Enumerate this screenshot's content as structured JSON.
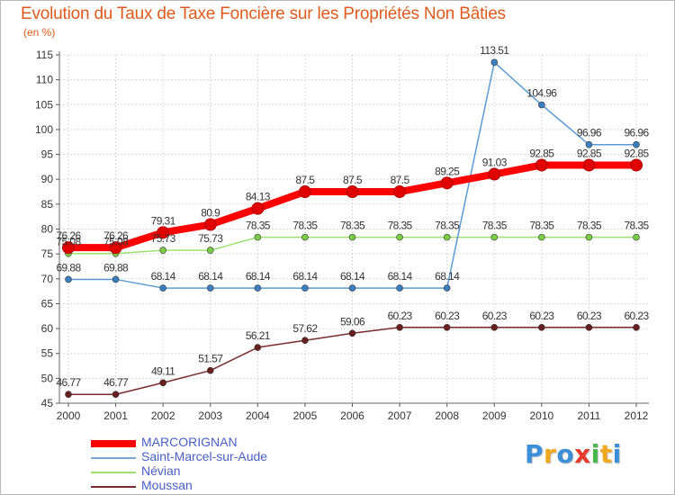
{
  "title": "Evolution du Taux de Taxe Foncière sur les Propriétés Non Bâties",
  "subtitle": "(en %)",
  "chart_data": {
    "type": "line",
    "title": "Evolution du Taux de Taxe Foncière sur les Propriétés Non Bâties",
    "ylabel": "(en %)",
    "xlabel": "",
    "categories": [
      "2000",
      "2001",
      "2002",
      "2003",
      "2004",
      "2005",
      "2006",
      "2007",
      "2008",
      "2009",
      "2010",
      "2011",
      "2012"
    ],
    "ylim": [
      45,
      115
    ],
    "yticks": [
      45,
      50,
      55,
      60,
      65,
      70,
      75,
      80,
      85,
      90,
      95,
      100,
      105,
      110,
      115
    ],
    "grid": true,
    "legend": "bottom-left",
    "series": [
      {
        "name": "MARCORIGNAN",
        "color": "#ff0000",
        "marker_color": "#e00000",
        "values": [
          76.26,
          76.26,
          79.31,
          80.9,
          84.13,
          87.5,
          87.5,
          87.5,
          89.25,
          91.03,
          92.85,
          92.85,
          92.85
        ],
        "labels": [
          "76.26",
          "76.26",
          "79.31",
          "80.9",
          "84.13",
          "87.5",
          "87.5",
          "87.5",
          "89.25",
          "91.03",
          "92.85",
          "92.85",
          "92.85"
        ]
      },
      {
        "name": "Saint-Marcel-sur-Aude",
        "color": "#5b9bd5",
        "marker_color": "#3a7fc0",
        "values": [
          69.88,
          69.88,
          68.14,
          68.14,
          68.14,
          68.14,
          68.14,
          68.14,
          68.14,
          113.51,
          104.96,
          96.96,
          96.96
        ],
        "labels": [
          "69.88",
          "69.88",
          "68.14",
          "68.14",
          "68.14",
          "68.14",
          "68.14",
          "68.14",
          "68.14",
          "113.51",
          "104.96",
          "96.96",
          "96.96"
        ]
      },
      {
        "name": "Névian",
        "color": "#9be36e",
        "marker_color": "#7bcc45",
        "values": [
          75.08,
          75.08,
          75.73,
          75.73,
          78.35,
          78.35,
          78.35,
          78.35,
          78.35,
          78.35,
          78.35,
          78.35,
          78.35
        ],
        "labels": [
          "75.08",
          "75.08",
          "75.73",
          "75.73",
          "78.35",
          "78.35",
          "78.35",
          "78.35",
          "78.35",
          "78.35",
          "78.35",
          "78.35",
          "78.35"
        ]
      },
      {
        "name": "Moussan",
        "color": "#7a2b2b",
        "marker_color": "#6a1f1f",
        "values": [
          46.77,
          46.77,
          49.11,
          51.57,
          56.21,
          57.62,
          59.06,
          60.23,
          60.23,
          60.23,
          60.23,
          60.23,
          60.23
        ],
        "labels": [
          "46.77",
          "46.77",
          "49.11",
          "51.57",
          "56.21",
          "57.62",
          "59.06",
          "60.23",
          "60.23",
          "60.23",
          "60.23",
          "60.23",
          "60.23"
        ]
      }
    ]
  },
  "legend": {
    "items": [
      {
        "label": "MARCORIGNAN",
        "color": "#ff0000"
      },
      {
        "label": "Saint-Marcel-sur-Aude",
        "color": "#7aa8d6"
      },
      {
        "label": "Névian",
        "color": "#9be36e"
      },
      {
        "label": "Moussan",
        "color": "#7a2b2b"
      }
    ]
  },
  "logo": {
    "letters": [
      {
        "ch": "P",
        "color": "#3b8fd9"
      },
      {
        "ch": "r",
        "color": "#f2a81d"
      },
      {
        "ch": "o",
        "color": "#3b8fd9"
      },
      {
        "ch": "x",
        "color": "#e83a2a"
      },
      {
        "ch": "i",
        "color": "#47b84a"
      },
      {
        "ch": "t",
        "color": "#f2a81d"
      },
      {
        "ch": "i",
        "color": "#3b8fd9"
      }
    ]
  }
}
